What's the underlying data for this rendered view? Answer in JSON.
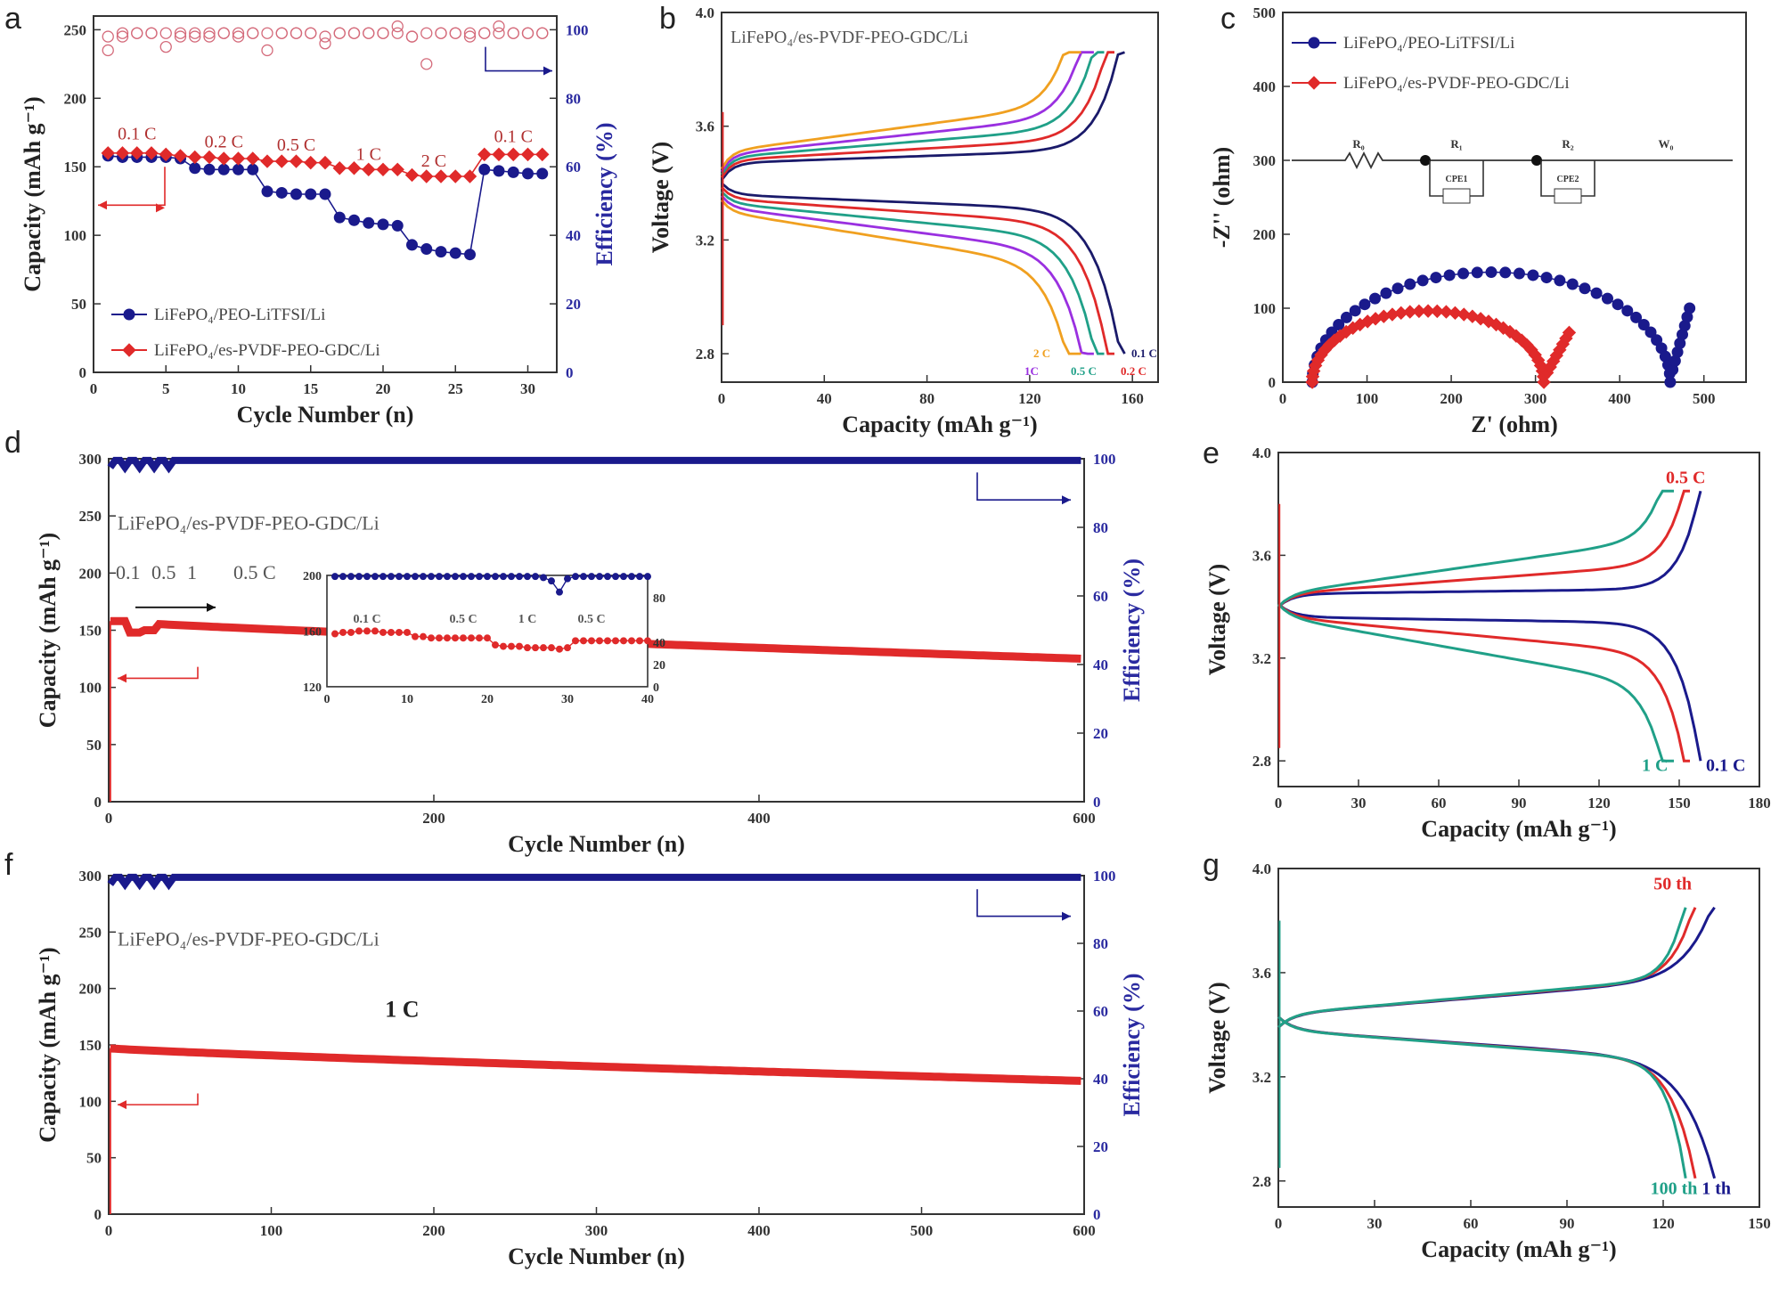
{
  "colors": {
    "blue": "#1a1a8c",
    "red": "#e02a2a",
    "pink": "#d46a7a",
    "axis": "#333333",
    "orange": "#f0a020",
    "purple": "#9a30e0",
    "teal": "#20a088",
    "navy": "#1a1a6a"
  },
  "chart_data": [
    {
      "id": "a",
      "type": "scatter",
      "panel_label": "a",
      "xlabel": "Cycle Number (n)",
      "ylabel": "Capacity (mAh g⁻¹)",
      "ylabel_right": "Efficiency (%)",
      "xlim": [
        0,
        32
      ],
      "ylim": [
        0,
        260
      ],
      "y2lim": [
        0,
        104
      ],
      "xticks": [
        0,
        5,
        10,
        15,
        20,
        25,
        30
      ],
      "yticks": [
        0,
        50,
        100,
        150,
        200,
        250
      ],
      "y2ticks": [
        0,
        20,
        40,
        60,
        80,
        100
      ],
      "rate_labels": [
        {
          "text": "0.1 C",
          "x": 3,
          "y": 170
        },
        {
          "text": "0.2 C",
          "x": 9,
          "y": 164
        },
        {
          "text": "0.5 C",
          "x": 14,
          "y": 162
        },
        {
          "text": "1 C",
          "x": 19,
          "y": 155
        },
        {
          "text": "2 C",
          "x": 23.5,
          "y": 150
        },
        {
          "text": "0.1 C",
          "x": 29,
          "y": 168
        }
      ],
      "series": [
        {
          "name": "LiFePO₄/PEO-LiTFSI/Li",
          "color": "blue",
          "marker": "circle",
          "x": [
            1,
            2,
            3,
            4,
            5,
            6,
            7,
            8,
            9,
            10,
            11,
            12,
            13,
            14,
            15,
            16,
            17,
            18,
            19,
            20,
            21,
            22,
            23,
            24,
            25,
            26,
            27,
            28,
            29,
            30,
            31
          ],
          "y": [
            158,
            157,
            157,
            157,
            157,
            156,
            149,
            148,
            148,
            148,
            148,
            132,
            131,
            130,
            130,
            130,
            113,
            111,
            109,
            108,
            107,
            93,
            90,
            88,
            87,
            86,
            148,
            147,
            146,
            145,
            145
          ]
        },
        {
          "name": "LiFePO₄/es-PVDF-PEO-GDC/Li",
          "color": "red",
          "marker": "diamond",
          "x": [
            1,
            2,
            3,
            4,
            5,
            6,
            7,
            8,
            9,
            10,
            11,
            12,
            13,
            14,
            15,
            16,
            17,
            18,
            19,
            20,
            21,
            22,
            23,
            24,
            25,
            26,
            27,
            28,
            29,
            30,
            31
          ],
          "y": [
            160,
            160,
            160,
            160,
            159,
            158,
            157,
            157,
            156,
            156,
            156,
            154,
            154,
            154,
            153,
            153,
            149,
            149,
            148,
            148,
            148,
            144,
            143,
            143,
            143,
            143,
            159,
            159,
            159,
            159,
            159
          ]
        },
        {
          "name": "",
          "color": "pink",
          "marker": "open-circle",
          "axis": "right",
          "x": [
            1,
            2,
            3,
            4,
            5,
            6,
            7,
            8,
            9,
            10,
            11,
            12,
            13,
            14,
            15,
            16,
            17,
            18,
            19,
            20,
            21,
            22,
            23,
            24,
            25,
            26,
            27,
            28,
            29,
            30,
            31
          ],
          "y": [
            98,
            99,
            99,
            99,
            95,
            98,
            99,
            99,
            99,
            98,
            99,
            94,
            99,
            99,
            99,
            98,
            99,
            99,
            99,
            99,
            101,
            98,
            99,
            99,
            99,
            98,
            99,
            101,
            99,
            99,
            99
          ]
        },
        {
          "name": "",
          "color": "pink",
          "marker": "open-circle",
          "axis": "right",
          "x": [
            1,
            2,
            3,
            4,
            5,
            6,
            7,
            8,
            9,
            10,
            11,
            12,
            13,
            14,
            15,
            16,
            17,
            18,
            19,
            20,
            21,
            22,
            23,
            24,
            25,
            26,
            27,
            28,
            29,
            30,
            31
          ],
          "y": [
            94,
            98,
            99,
            99,
            99,
            99,
            98,
            98,
            99,
            99,
            99,
            99,
            99,
            99,
            99,
            96,
            99,
            99,
            99,
            99,
            99,
            98,
            90,
            99,
            99,
            99,
            99,
            99,
            99,
            99,
            99
          ]
        }
      ]
    },
    {
      "id": "b",
      "type": "line",
      "panel_label": "b",
      "title": "LiFePO₄/es-PVDF-PEO-GDC/Li",
      "xlabel": "Capacity (mAh g⁻¹)",
      "ylabel": "Voltage (V)",
      "xlim": [
        0,
        170
      ],
      "ylim": [
        2.7,
        4.0
      ],
      "xticks": [
        0,
        40,
        80,
        120,
        160
      ],
      "yticks": [
        2.8,
        3.2,
        3.6,
        4.0
      ],
      "series": [
        {
          "name": "0.1 C",
          "color": "navy",
          "capacity": 157
        },
        {
          "name": "0.2 C",
          "color": "red",
          "capacity": 153
        },
        {
          "name": "0.5 C",
          "color": "teal",
          "capacity": 149
        },
        {
          "name": "1C",
          "color": "purple",
          "capacity": 145
        },
        {
          "name": "2 C",
          "color": "orange",
          "capacity": 140
        }
      ],
      "legend_labels": [
        "2 C",
        "0.1 C",
        "1C",
        "0.5 C",
        "0.2 C"
      ]
    },
    {
      "id": "c",
      "type": "scatter",
      "panel_label": "c",
      "xlabel": "Z' (ohm)",
      "ylabel": "-Z'' (ohm)",
      "xlim": [
        0,
        550
      ],
      "ylim": [
        0,
        500
      ],
      "xticks": [
        0,
        100,
        200,
        300,
        400,
        500
      ],
      "yticks": [
        0,
        100,
        200,
        300,
        400,
        500
      ],
      "circuit_labels": [
        "R₀",
        "R₁",
        "R₂",
        "W₀",
        "CPE1",
        "CPE2"
      ],
      "series": [
        {
          "name": "LiFePO₄/PEO-LiTFSI/Li",
          "color": "blue",
          "r0": 35,
          "diameter": 425,
          "tail_x": 483,
          "tail_y": 95
        },
        {
          "name": "LiFePO₄/es-PVDF-PEO-GDC/Li",
          "color": "red",
          "r0": 35,
          "diameter": 275,
          "tail_x": 340,
          "tail_y": 62
        }
      ]
    },
    {
      "id": "d",
      "type": "scatter",
      "panel_label": "d",
      "title": "LiFePO₄/es-PVDF-PEO-GDC/Li",
      "xlabel": "Cycle Number (n)",
      "ylabel": "Capacity (mAh g⁻¹)",
      "ylabel_right": "Efficiency (%)",
      "xlim": [
        0,
        600
      ],
      "ylim": [
        0,
        300
      ],
      "y2lim": [
        0,
        100
      ],
      "xticks": [
        0,
        200,
        400,
        600
      ],
      "yticks": [
        0,
        50,
        100,
        150,
        200,
        250,
        300
      ],
      "y2ticks": [
        0,
        20,
        40,
        60,
        80,
        100
      ],
      "rate_text": [
        "0.1",
        "0.5",
        "1",
        "0.5 C"
      ],
      "series": [
        {
          "name": "Capacity",
          "color": "red",
          "start": 158,
          "end": 125
        },
        {
          "name": "Efficiency",
          "color": "blue",
          "value": 99.5,
          "axis": "right"
        }
      ],
      "inset": {
        "xlim": [
          0,
          40
        ],
        "ylim": [
          120,
          200
        ],
        "y2lim": [
          0,
          100
        ],
        "xticks": [
          0,
          10,
          20,
          30,
          40
        ],
        "yticks": [
          120,
          160,
          200
        ],
        "y2ticks": [
          0,
          20,
          40,
          80
        ],
        "rate_labels": [
          "0.1 C",
          "0.5 C",
          "1 C",
          "0.5 C"
        ],
        "capacity": [
          158,
          159,
          159,
          160,
          160,
          160,
          159,
          159,
          159,
          159,
          156,
          156,
          155,
          155,
          155,
          155,
          155,
          155,
          155,
          155,
          150,
          149,
          149,
          149,
          148,
          148,
          148,
          148,
          147,
          148,
          153,
          153,
          153,
          153,
          153,
          153,
          153,
          153,
          153,
          153
        ],
        "efficiency": [
          99,
          99,
          99,
          99,
          99,
          99,
          99,
          99,
          99,
          99,
          99,
          99,
          99,
          99,
          99,
          99,
          99,
          99,
          99,
          99,
          99,
          99,
          99,
          99,
          99,
          99,
          98,
          95,
          85,
          97,
          99,
          99,
          99,
          99,
          99,
          99,
          99,
          99,
          99,
          99
        ]
      }
    },
    {
      "id": "e",
      "type": "line",
      "panel_label": "e",
      "xlabel": "Capacity (mAh g⁻¹)",
      "ylabel": "Voltage (V)",
      "xlim": [
        0,
        180
      ],
      "ylim": [
        2.7,
        4.0
      ],
      "xticks": [
        0,
        30,
        60,
        90,
        120,
        150,
        180
      ],
      "yticks": [
        2.8,
        3.2,
        3.6,
        4.0
      ],
      "series": [
        {
          "name": "0.1 C",
          "color": "blue",
          "capacity": 158
        },
        {
          "name": "0.5 C",
          "color": "red",
          "capacity": 154
        },
        {
          "name": "1 C",
          "color": "teal",
          "capacity": 148
        }
      ]
    },
    {
      "id": "f",
      "type": "scatter",
      "panel_label": "f",
      "title": "LiFePO₄/es-PVDF-PEO-GDC/Li",
      "annotation": "1 C",
      "xlabel": "Cycle Number (n)",
      "ylabel": "Capacity (mAh g⁻¹)",
      "ylabel_right": "Efficiency (%)",
      "xlim": [
        0,
        600
      ],
      "ylim": [
        0,
        300
      ],
      "y2lim": [
        0,
        100
      ],
      "xticks": [
        0,
        100,
        200,
        300,
        400,
        500,
        600
      ],
      "yticks": [
        0,
        50,
        100,
        150,
        200,
        250,
        300
      ],
      "y2ticks": [
        0,
        20,
        40,
        60,
        80,
        100
      ],
      "series": [
        {
          "name": "Capacity",
          "color": "red",
          "start": 147,
          "end": 118
        },
        {
          "name": "Efficiency",
          "color": "blue",
          "value": 99.5,
          "axis": "right"
        }
      ]
    },
    {
      "id": "g",
      "type": "line",
      "panel_label": "g",
      "xlabel": "Capacity (mAh g⁻¹)",
      "ylabel": "Voltage (V)",
      "xlim": [
        0,
        150
      ],
      "ylim": [
        2.7,
        4.0
      ],
      "xticks": [
        0,
        30,
        60,
        90,
        120,
        150
      ],
      "yticks": [
        2.8,
        3.2,
        3.6,
        4.0
      ],
      "series": [
        {
          "name": "1 th",
          "color": "blue",
          "capacity": 136
        },
        {
          "name": "50 th",
          "color": "red",
          "capacity": 130
        },
        {
          "name": "100 th",
          "color": "teal",
          "capacity": 127
        }
      ]
    }
  ]
}
